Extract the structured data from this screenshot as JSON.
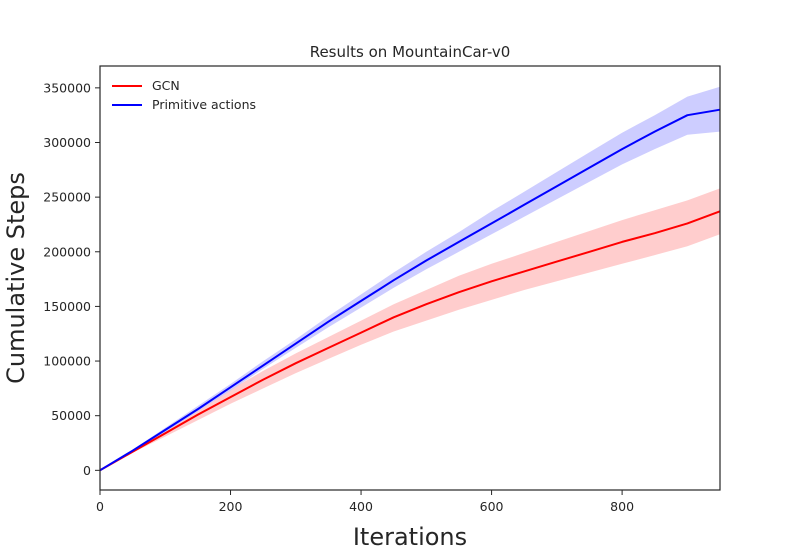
{
  "chart_data": {
    "type": "line",
    "title": "Results on MountainCar-v0",
    "xlabel": "Iterations",
    "ylabel": "Cumulative Steps",
    "xlim": [
      0,
      950
    ],
    "ylim": [
      -18000,
      370000
    ],
    "xticks": [
      0,
      200,
      400,
      600,
      800
    ],
    "yticks": [
      0,
      50000,
      100000,
      150000,
      200000,
      250000,
      300000,
      350000
    ],
    "grid": false,
    "legend_position": "top-left",
    "series": [
      {
        "name": "GCN",
        "color": "#ff0000",
        "band_color": "#ffc8c8",
        "x": [
          0,
          50,
          100,
          150,
          200,
          250,
          300,
          350,
          400,
          450,
          500,
          550,
          600,
          650,
          700,
          750,
          800,
          850,
          900,
          950
        ],
        "y": [
          0,
          17000,
          34000,
          51000,
          67000,
          83000,
          98000,
          112000,
          126000,
          140000,
          152000,
          163000,
          173000,
          182000,
          191000,
          200000,
          209000,
          217000,
          226000,
          237000
        ],
        "lower": [
          0,
          16000,
          31000,
          46000,
          61000,
          75000,
          89000,
          102000,
          115000,
          127000,
          137000,
          147000,
          156000,
          165000,
          173000,
          181000,
          189000,
          197000,
          205000,
          216000
        ],
        "upper": [
          0,
          18000,
          37000,
          56000,
          74000,
          91000,
          107000,
          122000,
          137000,
          152000,
          165000,
          178000,
          189000,
          199000,
          209000,
          219000,
          229000,
          238000,
          247000,
          258000
        ]
      },
      {
        "name": "Primitive actions",
        "color": "#0000ff",
        "band_color": "#c8c8ff",
        "x": [
          0,
          50,
          100,
          150,
          200,
          250,
          300,
          350,
          400,
          450,
          500,
          550,
          600,
          650,
          700,
          750,
          800,
          850,
          900,
          950
        ],
        "y": [
          0,
          18000,
          37000,
          56000,
          76000,
          96000,
          116000,
          136000,
          155000,
          174000,
          192000,
          209000,
          226000,
          243000,
          260000,
          277000,
          294000,
          310000,
          325000,
          330000
        ],
        "lower": [
          0,
          17000,
          35000,
          54000,
          73000,
          93000,
          112000,
          131000,
          149000,
          167000,
          184000,
          200000,
          216000,
          232000,
          248000,
          264000,
          280000,
          294000,
          307000,
          310000
        ],
        "upper": [
          0,
          19000,
          39000,
          59000,
          79000,
          100000,
          120000,
          141000,
          161000,
          181000,
          200000,
          218000,
          237000,
          255000,
          273000,
          291000,
          309000,
          325000,
          342000,
          351000
        ]
      }
    ]
  }
}
